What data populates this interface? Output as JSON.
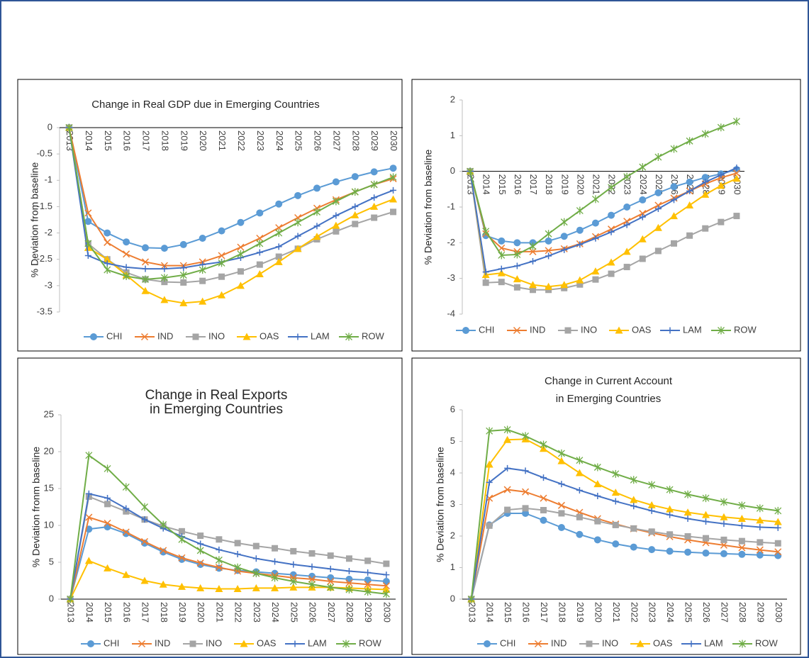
{
  "chart_data": [
    {
      "type": "line",
      "title": "Change in Real GDP due in  Emerging Countries",
      "y_label": "% Deviation from baseline",
      "categories": [
        "2013",
        "2014",
        "2015",
        "2016",
        "2017",
        "2018",
        "2019",
        "2020",
        "2021",
        "2022",
        "2023",
        "2024",
        "2025",
        "2026",
        "2027",
        "2028",
        "2029",
        "2030"
      ],
      "ylim": [
        -3.5,
        0
      ],
      "yticks": [
        0,
        -0.5,
        -1,
        -1.5,
        -2,
        -2.5,
        -3,
        -3.5
      ],
      "series": [
        {
          "name": "CHI",
          "color": "#5b9bd5",
          "marker": "circle",
          "values": [
            0,
            -1.78,
            -2.0,
            -2.17,
            -2.28,
            -2.29,
            -2.22,
            -2.1,
            -1.96,
            -1.8,
            -1.62,
            -1.45,
            -1.29,
            -1.15,
            -1.03,
            -0.93,
            -0.84,
            -0.77
          ]
        },
        {
          "name": "IND",
          "color": "#ed7d31",
          "marker": "x",
          "values": [
            0,
            -1.62,
            -2.18,
            -2.4,
            -2.55,
            -2.62,
            -2.62,
            -2.55,
            -2.43,
            -2.27,
            -2.1,
            -1.9,
            -1.71,
            -1.53,
            -1.37,
            -1.22,
            -1.08,
            -0.97
          ]
        },
        {
          "name": "INO",
          "color": "#a5a5a5",
          "marker": "square",
          "values": [
            0,
            -2.2,
            -2.5,
            -2.75,
            -2.88,
            -2.93,
            -2.94,
            -2.91,
            -2.83,
            -2.73,
            -2.6,
            -2.45,
            -2.3,
            -2.12,
            -1.97,
            -1.83,
            -1.71,
            -1.6
          ]
        },
        {
          "name": "OAS",
          "color": "#ffc000",
          "marker": "triangle",
          "values": [
            0,
            -2.28,
            -2.5,
            -2.8,
            -3.1,
            -3.27,
            -3.33,
            -3.3,
            -3.18,
            -3.0,
            -2.78,
            -2.55,
            -2.3,
            -2.07,
            -1.86,
            -1.66,
            -1.5,
            -1.36
          ]
        },
        {
          "name": "LAM",
          "color": "#4472c4",
          "marker": "plus",
          "values": [
            0,
            -2.43,
            -2.58,
            -2.65,
            -2.68,
            -2.68,
            -2.66,
            -2.6,
            -2.55,
            -2.47,
            -2.37,
            -2.26,
            -2.06,
            -1.87,
            -1.67,
            -1.5,
            -1.33,
            -1.19
          ]
        },
        {
          "name": "ROW",
          "color": "#70ad47",
          "marker": "star",
          "values": [
            0,
            -2.2,
            -2.7,
            -2.82,
            -2.88,
            -2.85,
            -2.8,
            -2.7,
            -2.57,
            -2.4,
            -2.2,
            -2.0,
            -1.8,
            -1.6,
            -1.4,
            -1.22,
            -1.08,
            -0.94
          ]
        }
      ]
    },
    {
      "type": "line",
      "y_label": "% Deviation from baseline",
      "categories": [
        "2013",
        "2014",
        "2015",
        "2016",
        "2017",
        "2018",
        "2019",
        "2020",
        "2021",
        "2022",
        "2023",
        "2024",
        "2025",
        "2026",
        "2027",
        "2028",
        "2029",
        "2030"
      ],
      "ylim": [
        -4,
        2
      ],
      "yticks": [
        2,
        1,
        0,
        -1,
        -2,
        -3,
        -4
      ],
      "series": [
        {
          "name": "CHI",
          "color": "#5b9bd5",
          "marker": "circle",
          "values": [
            0,
            -1.8,
            -1.95,
            -2.0,
            -2.0,
            -1.95,
            -1.82,
            -1.65,
            -1.45,
            -1.23,
            -1.0,
            -0.8,
            -0.6,
            -0.43,
            -0.3,
            -0.17,
            -0.07,
            0.05
          ]
        },
        {
          "name": "IND",
          "color": "#ed7d31",
          "marker": "x",
          "values": [
            0,
            -1.75,
            -2.15,
            -2.25,
            -2.25,
            -2.22,
            -2.17,
            -2.03,
            -1.83,
            -1.62,
            -1.4,
            -1.18,
            -0.95,
            -0.75,
            -0.55,
            -0.35,
            -0.18,
            -0.05
          ]
        },
        {
          "name": "INO",
          "color": "#a5a5a5",
          "marker": "square",
          "values": [
            0,
            -3.12,
            -3.1,
            -3.25,
            -3.32,
            -3.32,
            -3.27,
            -3.17,
            -3.03,
            -2.87,
            -2.68,
            -2.45,
            -2.23,
            -2.02,
            -1.8,
            -1.6,
            -1.42,
            -1.25
          ]
        },
        {
          "name": "OAS",
          "color": "#ffc000",
          "marker": "triangle",
          "values": [
            0,
            -2.9,
            -2.85,
            -3.02,
            -3.18,
            -3.23,
            -3.18,
            -3.05,
            -2.8,
            -2.55,
            -2.25,
            -1.9,
            -1.58,
            -1.25,
            -0.95,
            -0.65,
            -0.4,
            -0.2
          ]
        },
        {
          "name": "LAM",
          "color": "#4472c4",
          "marker": "plus",
          "values": [
            0,
            -2.82,
            -2.73,
            -2.65,
            -2.52,
            -2.37,
            -2.2,
            -2.05,
            -1.88,
            -1.7,
            -1.5,
            -1.28,
            -1.05,
            -0.8,
            -0.55,
            -0.3,
            -0.1,
            0.1
          ]
        },
        {
          "name": "ROW",
          "color": "#70ad47",
          "marker": "star",
          "values": [
            0,
            -1.68,
            -2.35,
            -2.33,
            -2.1,
            -1.75,
            -1.42,
            -1.1,
            -0.78,
            -0.45,
            -0.15,
            0.12,
            0.4,
            0.63,
            0.85,
            1.05,
            1.23,
            1.4
          ]
        }
      ]
    },
    {
      "type": "line",
      "title": [
        "Change in Real Exports",
        "in  Emerging Countries"
      ],
      "y_label": "% Deviation fronm baseline",
      "categories": [
        "2013",
        "2014",
        "2015",
        "2016",
        "2017",
        "2018",
        "2019",
        "2020",
        "2021",
        "2022",
        "2023",
        "2024",
        "2025",
        "2026",
        "2027",
        "2028",
        "2029",
        "2030"
      ],
      "ylim": [
        0,
        25
      ],
      "yticks": [
        0,
        5,
        10,
        15,
        20,
        25
      ],
      "series": [
        {
          "name": "CHI",
          "color": "#5b9bd5",
          "marker": "circle",
          "values": [
            0,
            9.5,
            9.8,
            8.9,
            7.6,
            6.4,
            5.4,
            4.7,
            4.2,
            3.9,
            3.7,
            3.5,
            3.3,
            3.1,
            2.9,
            2.7,
            2.6,
            2.4
          ]
        },
        {
          "name": "IND",
          "color": "#ed7d31",
          "marker": "x",
          "values": [
            0,
            11.1,
            10.3,
            9.1,
            7.8,
            6.6,
            5.6,
            4.9,
            4.3,
            3.8,
            3.5,
            3.2,
            2.9,
            2.7,
            2.4,
            2.2,
            2.0,
            1.8
          ]
        },
        {
          "name": "INO",
          "color": "#a5a5a5",
          "marker": "square",
          "values": [
            0,
            13.9,
            12.9,
            11.9,
            10.8,
            9.9,
            9.2,
            8.6,
            8.1,
            7.6,
            7.2,
            6.9,
            6.5,
            6.2,
            5.9,
            5.5,
            5.2,
            4.8
          ]
        },
        {
          "name": "OAS",
          "color": "#ffc000",
          "marker": "triangle",
          "values": [
            0,
            5.2,
            4.2,
            3.3,
            2.5,
            2.0,
            1.7,
            1.5,
            1.4,
            1.4,
            1.5,
            1.5,
            1.6,
            1.6,
            1.6,
            1.5,
            1.4,
            1.3
          ]
        },
        {
          "name": "LAM",
          "color": "#4472c4",
          "marker": "plus",
          "values": [
            0,
            14.3,
            13.7,
            12.3,
            10.8,
            9.6,
            8.5,
            7.5,
            6.7,
            6.1,
            5.5,
            5.1,
            4.7,
            4.4,
            4.1,
            3.8,
            3.6,
            3.3
          ]
        },
        {
          "name": "ROW",
          "color": "#70ad47",
          "marker": "star",
          "values": [
            0,
            19.5,
            17.7,
            15.2,
            12.5,
            10.1,
            8.1,
            6.6,
            5.3,
            4.3,
            3.5,
            2.9,
            2.4,
            2.0,
            1.6,
            1.3,
            1.0,
            0.7
          ]
        }
      ]
    },
    {
      "type": "line",
      "title": [
        "Change in Current Account",
        "in  Emerging Countries"
      ],
      "y_label": "% Deviation from baseline",
      "categories": [
        "2013",
        "2014",
        "2015",
        "2016",
        "2017",
        "2018",
        "2019",
        "2020",
        "2021",
        "2022",
        "2023",
        "2024",
        "2025",
        "2026",
        "2027",
        "2028",
        "2029",
        "2030"
      ],
      "ylim": [
        0,
        6
      ],
      "yticks": [
        0,
        1,
        2,
        3,
        4,
        5,
        6
      ],
      "series": [
        {
          "name": "CHI",
          "color": "#5b9bd5",
          "marker": "circle",
          "values": [
            0,
            2.35,
            2.72,
            2.72,
            2.5,
            2.27,
            2.05,
            1.88,
            1.75,
            1.65,
            1.57,
            1.52,
            1.49,
            1.46,
            1.44,
            1.42,
            1.4,
            1.38
          ]
        },
        {
          "name": "IND",
          "color": "#ed7d31",
          "marker": "x",
          "values": [
            0,
            3.2,
            3.47,
            3.4,
            3.2,
            2.97,
            2.75,
            2.55,
            2.38,
            2.23,
            2.1,
            1.98,
            1.88,
            1.79,
            1.71,
            1.63,
            1.56,
            1.5
          ]
        },
        {
          "name": "INO",
          "color": "#a5a5a5",
          "marker": "square",
          "values": [
            0,
            2.33,
            2.83,
            2.88,
            2.82,
            2.72,
            2.6,
            2.47,
            2.35,
            2.24,
            2.14,
            2.05,
            1.99,
            1.93,
            1.88,
            1.84,
            1.8,
            1.77
          ]
        },
        {
          "name": "OAS",
          "color": "#ffc000",
          "marker": "triangle",
          "values": [
            0,
            4.27,
            5.05,
            5.07,
            4.77,
            4.38,
            4.0,
            3.65,
            3.38,
            3.15,
            2.98,
            2.85,
            2.75,
            2.67,
            2.6,
            2.55,
            2.5,
            2.45
          ]
        },
        {
          "name": "LAM",
          "color": "#4472c4",
          "marker": "plus",
          "values": [
            0,
            3.7,
            4.15,
            4.07,
            3.85,
            3.65,
            3.45,
            3.27,
            3.1,
            2.95,
            2.8,
            2.67,
            2.55,
            2.46,
            2.39,
            2.33,
            2.28,
            2.26
          ]
        },
        {
          "name": "ROW",
          "color": "#70ad47",
          "marker": "star",
          "values": [
            0,
            5.33,
            5.37,
            5.17,
            4.9,
            4.62,
            4.4,
            4.18,
            3.97,
            3.78,
            3.62,
            3.47,
            3.32,
            3.2,
            3.08,
            2.97,
            2.88,
            2.8
          ]
        }
      ]
    }
  ]
}
